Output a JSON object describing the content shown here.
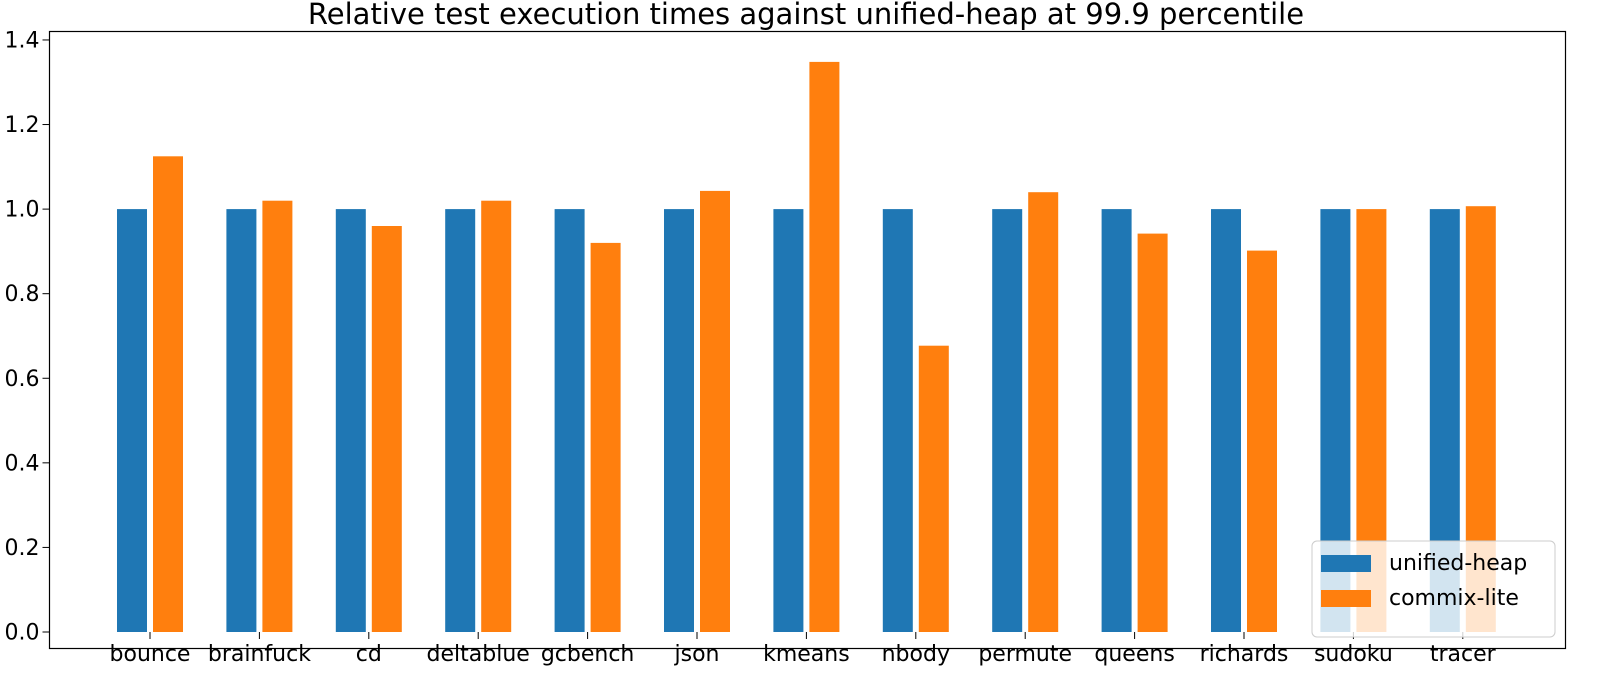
{
  "chart_data": {
    "type": "bar",
    "title": "Relative test execution times against unified-heap at 99.9 percentile",
    "xlabel": "",
    "ylabel": "",
    "ylim": [
      0,
      1.42
    ],
    "yticks": [
      "0.0",
      "0.2",
      "0.4",
      "0.6",
      "0.8",
      "1.0",
      "1.2",
      "1.4"
    ],
    "categories": [
      "bounce",
      "brainfuck",
      "cd",
      "deltablue",
      "gcbench",
      "json",
      "kmeans",
      "nbody",
      "permute",
      "queens",
      "richards",
      "sudoku",
      "tracer"
    ],
    "series": [
      {
        "name": "unified-heap",
        "color": "#1f77b4",
        "values": [
          1.0,
          1.0,
          1.0,
          1.0,
          1.0,
          1.0,
          1.0,
          1.0,
          1.0,
          1.0,
          1.0,
          1.0,
          1.0
        ]
      },
      {
        "name": "commix-lite",
        "color": "#ff7f0e",
        "values": [
          1.125,
          1.02,
          0.96,
          1.02,
          0.92,
          1.043,
          1.348,
          0.677,
          1.04,
          0.942,
          0.902,
          1.0,
          1.007
        ]
      }
    ],
    "grid": false,
    "legend_position": "bottom-right"
  }
}
